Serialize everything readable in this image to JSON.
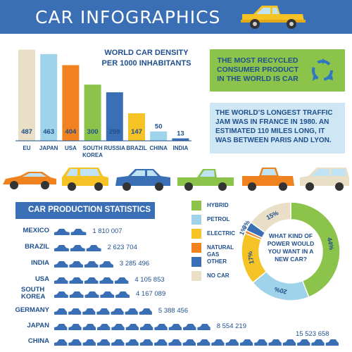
{
  "header": {
    "title": "CAR INFOGRAPHICS"
  },
  "colors": {
    "header": "#3a6fb5",
    "hybrid": "#8cc34b",
    "petrol": "#9ed3ea",
    "electric": "#f5c326",
    "natural_gas": "#f0831f",
    "other": "#3a6fb5",
    "no_car": "#e8dfc6"
  },
  "density": {
    "title_line1": "WORLD CAR DENSITY",
    "title_line2": "PER 1000 INHABITANTS"
  },
  "recycle_card": {
    "text": "THE MOST RECYCLED CONSUMER PRODUCT IN THE WORLD IS CAR",
    "icon": "recycle-icon"
  },
  "traffic_card": {
    "text": "THE WORLD’S LONGEST TRAFFIC JAM WAS IN FRANCE IN 1980. AN ESTIMATED 110 MILES LONG, IT WAS BETWEEN PARIS AND LYON."
  },
  "production": {
    "title": "CAR PRODUCTION STATISTICS",
    "icon": "car-icon"
  },
  "power_question": "WHAT KIND OF POWER WOULD YOU WANT IN A NEW CAR?",
  "legend": [
    {
      "label": "HYBRID",
      "color": "#8cc34b"
    },
    {
      "label": "PETROL",
      "color": "#9ed3ea"
    },
    {
      "label": "ELECTRIC",
      "color": "#f5c326"
    },
    {
      "label": "NATURAL GAS",
      "color": "#f0831f"
    },
    {
      "label": "OTHER",
      "color": "#3a6fb5"
    },
    {
      "label": "NO CAR",
      "color": "#e8dfc6"
    }
  ],
  "chart_data": [
    {
      "type": "bar",
      "title": "WORLD CAR DENSITY PER 1000 INHABITANTS",
      "categories": [
        "EU",
        "JAPAN",
        "USA",
        "SOUTH KOREA",
        "RUSSIA",
        "BRAZIL",
        "CHINA",
        "INDIA"
      ],
      "values": [
        487,
        463,
        404,
        300,
        259,
        147,
        50,
        13
      ],
      "colors": [
        "#e8dfc6",
        "#9ed3ea",
        "#f0831f",
        "#8cc34b",
        "#3a6fb5",
        "#f5c326",
        "#9ed3ea",
        "#3a6fb5"
      ],
      "ylim": [
        0,
        500
      ],
      "grid": false
    },
    {
      "type": "bar",
      "title": "CAR PRODUCTION STATISTICS",
      "orientation": "horizontal",
      "categories": [
        "MEXICO",
        "BRAZIL",
        "INDIA",
        "USA",
        "SOUTH KOREA",
        "GERMANY",
        "JAPAN",
        "CHINA"
      ],
      "values": [
        1810007,
        2623704,
        3285496,
        4105853,
        4167089,
        5388456,
        8554219,
        15523658
      ],
      "value_labels": [
        "1 810 007",
        "2 623 704",
        "3 285 496",
        "4 105 853",
        "4 167 089",
        "5 388 456",
        "8 554 219",
        "15 523 658"
      ]
    },
    {
      "type": "pie",
      "style": "donut",
      "title": "WHAT KIND OF POWER WOULD YOU WANT IN A NEW CAR?",
      "categories": [
        "HYBRID",
        "PETROL",
        "ELECTRIC",
        "NATURAL GAS",
        "OTHER",
        "NO CAR"
      ],
      "values": [
        44,
        20,
        17,
        1,
        3,
        15
      ],
      "value_labels": [
        "44%",
        "20%",
        "17%",
        "1%",
        "3%",
        "15%"
      ],
      "colors": [
        "#8cc34b",
        "#9ed3ea",
        "#f5c326",
        "#f0831f",
        "#3a6fb5",
        "#e8dfc6"
      ]
    }
  ]
}
